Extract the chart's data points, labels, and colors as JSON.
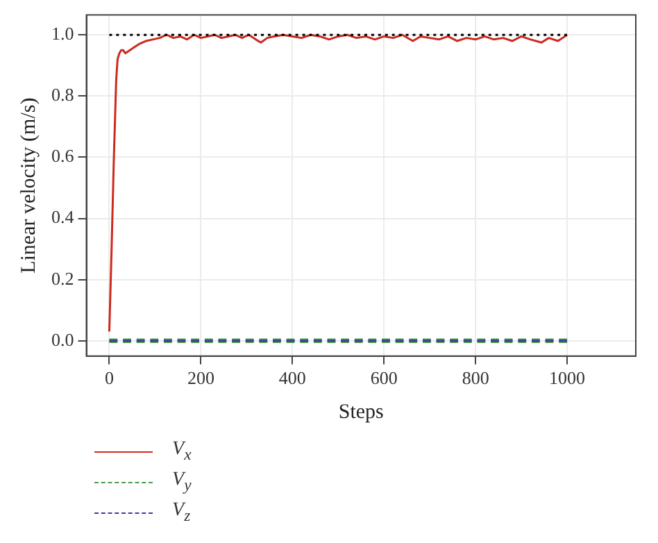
{
  "chart_data": {
    "type": "line",
    "xlabel": "Steps",
    "ylabel": "Linear velocity (m/s)",
    "xlim": [
      -50,
      1150
    ],
    "ylim": [
      -0.05,
      1.065
    ],
    "xticks": [
      0,
      200,
      400,
      600,
      800,
      1000
    ],
    "yticks": [
      {
        "value": 0,
        "label": "0.0"
      },
      {
        "value": 0.2,
        "label": "0.2"
      },
      {
        "value": 0.4,
        "label": "0.4"
      },
      {
        "value": 0.6,
        "label": "0.6"
      },
      {
        "value": 0.8,
        "label": "0.8"
      },
      {
        "value": 1,
        "label": "1.0"
      }
    ],
    "grid": true,
    "legend": "bottom left",
    "marker": "none",
    "series": [
      {
        "name": "V$_{x}$",
        "color": "#cc2a1e",
        "line_style": "solid",
        "x": [
          0,
          5,
          10,
          15,
          18,
          22,
          26,
          30,
          35,
          40,
          45,
          55,
          65,
          80,
          95,
          110,
          125,
          140,
          155,
          170,
          185,
          200,
          215,
          230,
          245,
          260,
          275,
          290,
          305,
          320,
          331,
          345,
          360,
          380,
          400,
          420,
          440,
          460,
          480,
          500,
          520,
          540,
          560,
          580,
          600,
          620,
          640,
          663,
          680,
          700,
          720,
          740,
          760,
          780,
          800,
          820,
          840,
          860,
          880,
          900,
          920,
          944,
          960,
          980,
          1000
        ],
        "values": [
          0.03,
          0.3,
          0.6,
          0.85,
          0.92,
          0.94,
          0.95,
          0.95,
          0.94,
          0.945,
          0.95,
          0.96,
          0.97,
          0.98,
          0.985,
          0.99,
          1.0,
          0.99,
          0.995,
          0.985,
          1.0,
          0.99,
          0.995,
          1.0,
          0.99,
          0.995,
          1.0,
          0.99,
          1.0,
          0.985,
          0.975,
          0.99,
          0.995,
          1.0,
          0.995,
          0.99,
          1.0,
          0.995,
          0.985,
          0.995,
          1.0,
          0.99,
          0.995,
          0.985,
          0.995,
          0.99,
          1.0,
          0.98,
          0.995,
          0.99,
          0.985,
          0.995,
          0.98,
          0.99,
          0.985,
          0.995,
          0.985,
          0.99,
          0.98,
          0.995,
          0.985,
          0.975,
          0.99,
          0.98,
          1.0
        ]
      },
      {
        "name": "V$_{y}$",
        "color": "#4a9a4a",
        "line_style": "dashed",
        "x": [
          0,
          1000
        ],
        "values": [
          0,
          0
        ]
      },
      {
        "name": "V$_{z}$",
        "color": "#3b3ba0",
        "line_style": "dashed",
        "x": [
          0,
          1000
        ],
        "values": [
          0,
          0
        ]
      },
      {
        "color": "#000000",
        "line_style": "dotted",
        "x": [
          0,
          1000
        ],
        "values": [
          1,
          1
        ]
      }
    ]
  }
}
